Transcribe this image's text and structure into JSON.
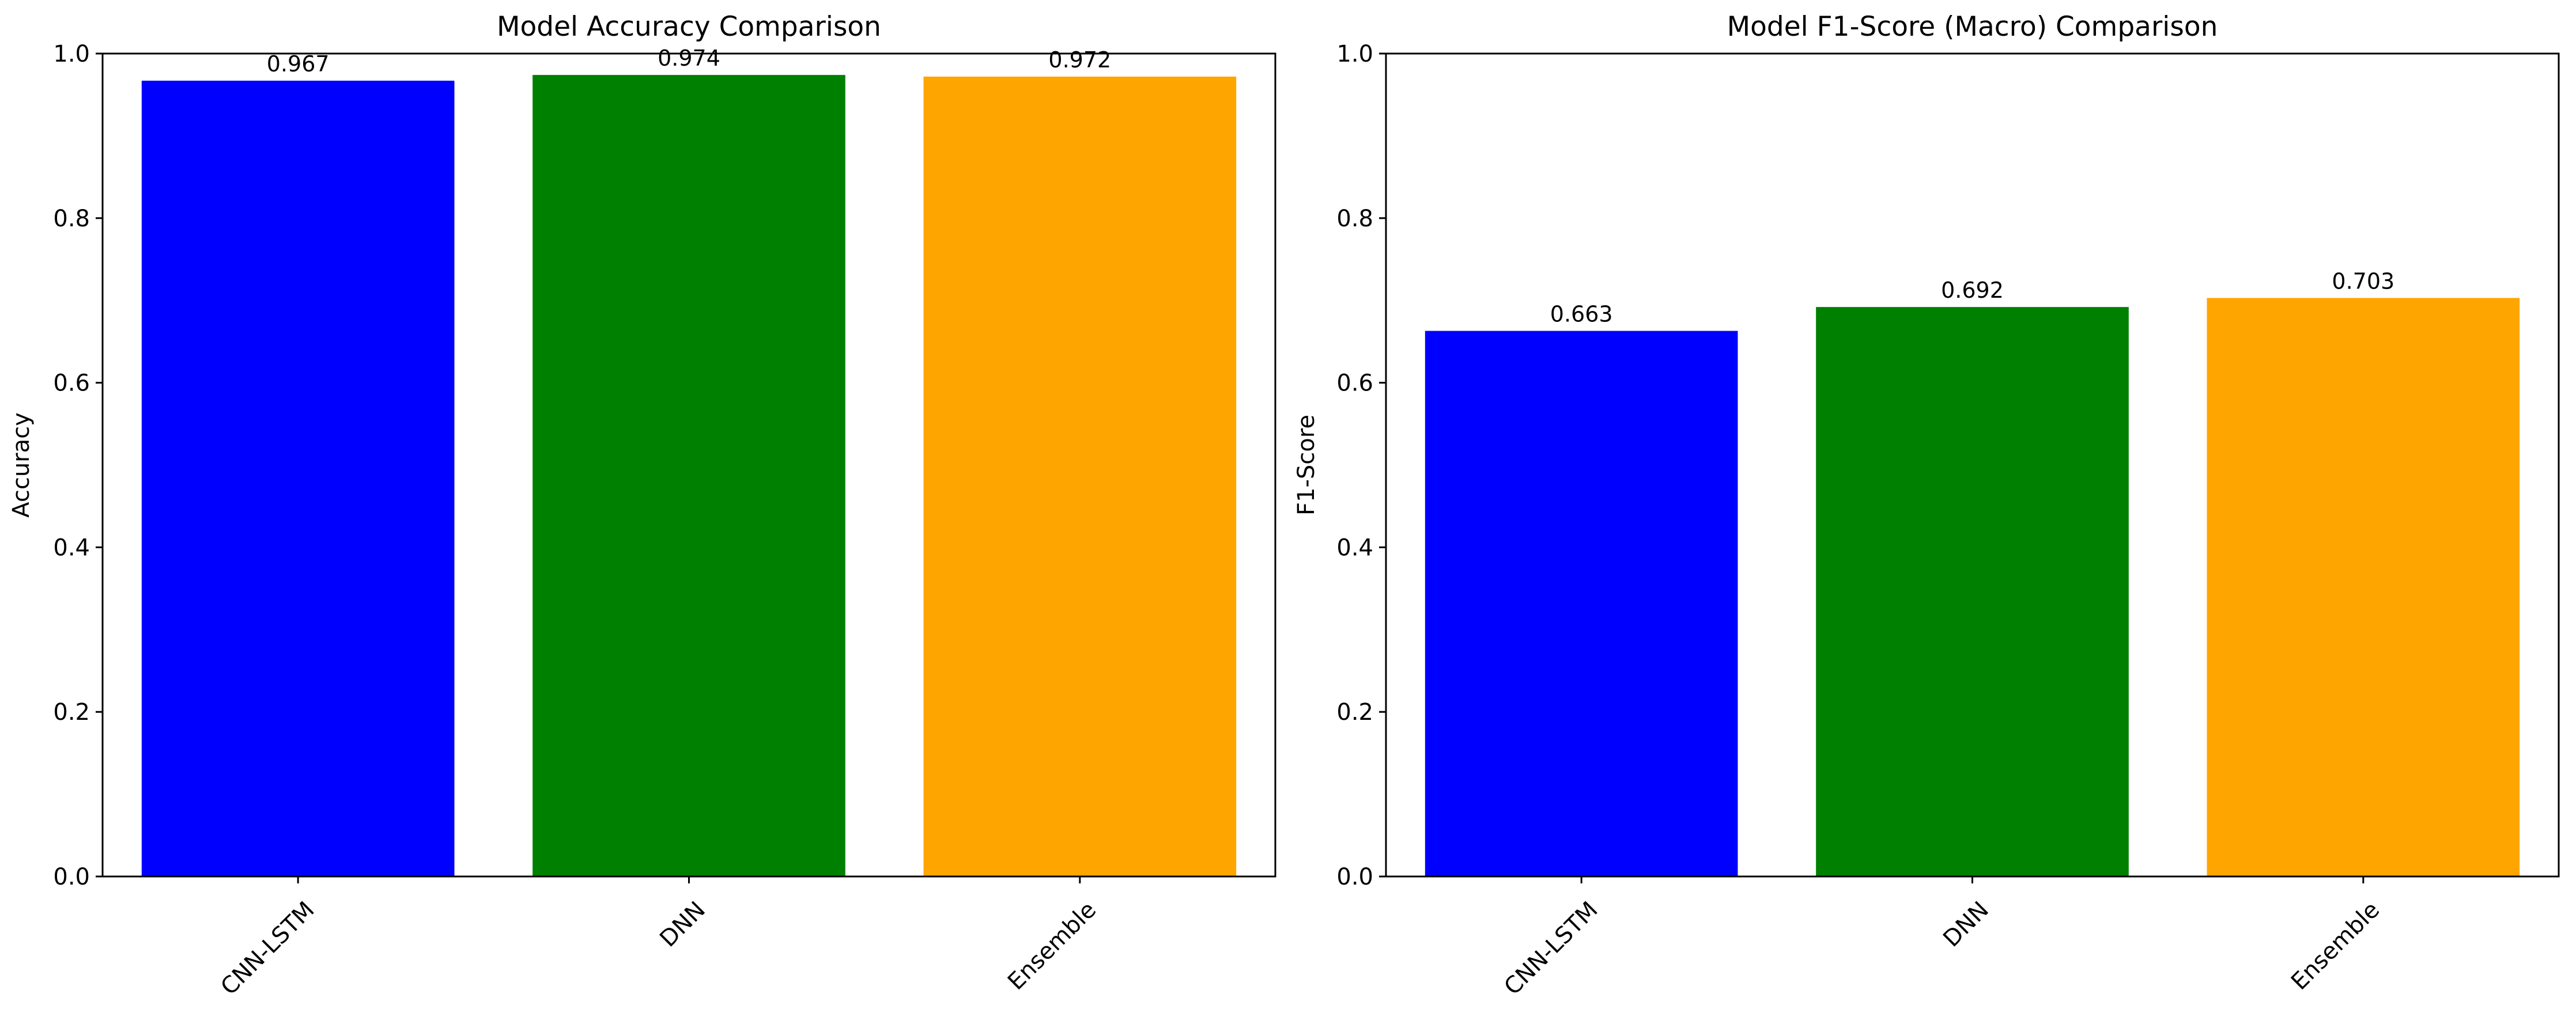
{
  "chart_data": [
    {
      "type": "bar",
      "title": "Model Accuracy Comparison",
      "xlabel": "",
      "ylabel": "Accuracy",
      "categories": [
        "CNN-LSTM",
        "DNN",
        "Ensemble"
      ],
      "values": [
        0.967,
        0.974,
        0.972
      ],
      "value_labels": [
        "0.967",
        "0.974",
        "0.972"
      ],
      "colors": [
        "#0000ff",
        "#008000",
        "#ffa500"
      ],
      "ylim": [
        0,
        1.0
      ],
      "yticks": [
        0.0,
        0.2,
        0.4,
        0.6,
        0.8,
        1.0
      ],
      "ytick_labels": [
        "0.0",
        "0.2",
        "0.4",
        "0.6",
        "0.8",
        "1.0"
      ],
      "xtick_rotation": 45,
      "grid": false,
      "legend": "none"
    },
    {
      "type": "bar",
      "title": "Model F1-Score (Macro) Comparison",
      "xlabel": "",
      "ylabel": "F1-Score",
      "categories": [
        "CNN-LSTM",
        "DNN",
        "Ensemble"
      ],
      "values": [
        0.663,
        0.692,
        0.703
      ],
      "value_labels": [
        "0.663",
        "0.692",
        "0.703"
      ],
      "colors": [
        "#0000ff",
        "#008000",
        "#ffa500"
      ],
      "ylim": [
        0,
        1.0
      ],
      "yticks": [
        0.0,
        0.2,
        0.4,
        0.6,
        0.8,
        1.0
      ],
      "ytick_labels": [
        "0.0",
        "0.2",
        "0.4",
        "0.6",
        "0.8",
        "1.0"
      ],
      "xtick_rotation": 45,
      "grid": false,
      "legend": "none"
    }
  ]
}
